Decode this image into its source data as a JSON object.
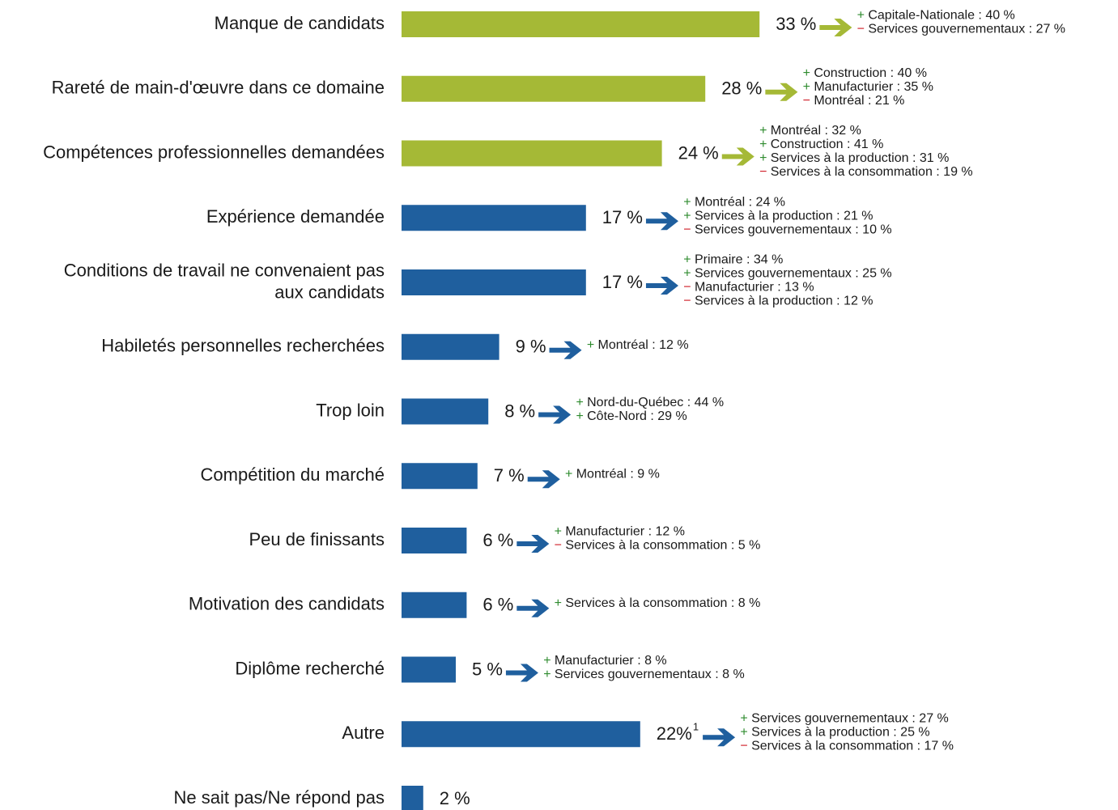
{
  "chart_data": {
    "type": "bar",
    "orientation": "horizontal",
    "categories": [
      "Manque de candidats",
      "Rareté de main-d'œuvre dans ce domaine",
      "Compétences professionnelles demandées",
      "Expérience demandée",
      "Conditions de travail ne convenaient pas\naux candidats",
      "Habiletés personnelles recherchées",
      "Trop loin",
      "Compétition du marché",
      "Peu de finissants",
      "Motivation des candidats",
      "Diplôme recherché",
      "Autre",
      "Ne sait pas/Ne répond pas"
    ],
    "values": [
      33,
      28,
      24,
      17,
      17,
      9,
      8,
      7,
      6,
      6,
      5,
      22,
      2
    ],
    "value_labels": [
      "33 %",
      "28 %",
      "24 %",
      "17 %",
      "17 %",
      "9 %",
      "8 %",
      "7 %",
      "6 %",
      "6 %",
      "5 %",
      "22%",
      "2 %"
    ],
    "colors": [
      "#a5b936",
      "#a5b936",
      "#a5b936",
      "#1f5f9e",
      "#1f5f9e",
      "#1f5f9e",
      "#1f5f9e",
      "#1f5f9e",
      "#1f5f9e",
      "#1f5f9e",
      "#1f5f9e",
      "#1f5f9e",
      "#1f5f9e"
    ],
    "callouts": [
      {
        "items": [
          {
            "sign": "+",
            "text": "Capitale-Nationale : 40 %"
          },
          {
            "sign": "−",
            "text": "Services gouvernementaux : 27 %"
          }
        ]
      },
      {
        "items": [
          {
            "sign": "+",
            "text": "Construction : 40 %"
          },
          {
            "sign": "+",
            "text": "Manufacturier : 35 %"
          },
          {
            "sign": "−",
            "text": "Montréal : 21 %"
          }
        ]
      },
      {
        "items": [
          {
            "sign": "+",
            "text": "Montréal : 32 %"
          },
          {
            "sign": "+",
            "text": "Construction : 41 %"
          },
          {
            "sign": "+",
            "text": "Services à la production : 31 %"
          },
          {
            "sign": "−",
            "text": "Services à la consommation : 19 %"
          }
        ]
      },
      {
        "items": [
          {
            "sign": "+",
            "text": "Montréal : 24 %"
          },
          {
            "sign": "+",
            "text": "Services à la production : 21 %"
          },
          {
            "sign": "−",
            "text": "Services gouvernementaux : 10 %"
          }
        ]
      },
      {
        "items": [
          {
            "sign": "+",
            "text": "Primaire : 34 %"
          },
          {
            "sign": "+",
            "text": "Services gouvernementaux : 25 %"
          },
          {
            "sign": "−",
            "text": "Manufacturier : 13 %"
          },
          {
            "sign": "−",
            "text": "Services à la production : 12 %"
          }
        ]
      },
      {
        "items": [
          {
            "sign": "+",
            "text": "Montréal : 12 %"
          }
        ]
      },
      {
        "items": [
          {
            "sign": "+",
            "text": "Nord-du-Québec : 44 %"
          },
          {
            "sign": "+",
            "text": "Côte-Nord : 29 %"
          }
        ]
      },
      {
        "items": [
          {
            "sign": "+",
            "text": "Montréal : 9 %"
          }
        ]
      },
      {
        "items": [
          {
            "sign": "+",
            "text": "Manufacturier : 12 %"
          },
          {
            "sign": "−",
            "text": "Services à la consommation : 5 %"
          }
        ]
      },
      {
        "items": [
          {
            "sign": "+",
            "text": "Services à la consommation : 8 %"
          }
        ]
      },
      {
        "items": [
          {
            "sign": "+",
            "text": "Manufacturier : 8 %"
          },
          {
            "sign": "+",
            "text": "Services gouvernementaux : 8 %"
          }
        ]
      },
      {
        "superscript": "1",
        "items": [
          {
            "sign": "+",
            "text": "Services gouvernementaux : 27 %"
          },
          {
            "sign": "+",
            "text": "Services à la production : 25 %"
          },
          {
            "sign": "−",
            "text": "Services à la consommation : 17 %"
          }
        ]
      },
      {
        "items": []
      }
    ]
  }
}
